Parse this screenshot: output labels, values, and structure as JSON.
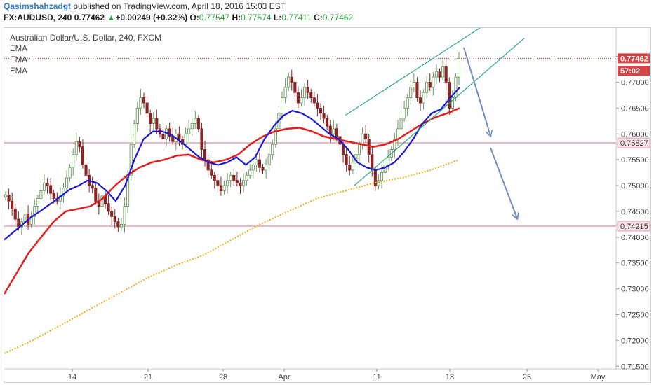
{
  "header": {
    "author": "Qasimshahzadgt",
    "published_text": "published on TradingView.com, April 18, 2016 15:03 EST",
    "symbol": "FX:AUDUSD, 240",
    "last": "0.77462",
    "change_arrow": "▲",
    "change": "+0.00249 (+0.32%)",
    "o_label": "O:",
    "o_value": "0.77547",
    "h_label": "H:",
    "h_value": "0.77574",
    "l_label": "L:",
    "l_value": "0.77411",
    "c_label": "C:",
    "c_value": "0.77462"
  },
  "legend": {
    "title": "Australian Dollar/U.S. Dollar, 240, FXCM",
    "indicators": [
      "EMA",
      "EMA",
      "EMA"
    ]
  },
  "colors": {
    "bull": "#6a9a5e",
    "bear": "#8a2525",
    "ema_fast": "#1b1bd6",
    "ema_mid": "#e02020",
    "ema_slow": "#f0b020",
    "channel": "#2aaa84",
    "arrow": "#6f8fc6",
    "level": "#e4a0b0",
    "price_line": "#c0392b",
    "label_bg": "#d64545"
  },
  "chart_data": {
    "type": "candlestick",
    "title": "Australian Dollar/U.S. Dollar, 240, FXCM",
    "ylim": [
      0.7145,
      0.7805
    ],
    "y_ticks": [
      "0.77500",
      "0.77000",
      "0.76500",
      "0.76000",
      "0.75500",
      "0.75000",
      "0.74500",
      "0.74000",
      "0.73500",
      "0.73000",
      "0.72500",
      "0.72000",
      "0.71500"
    ],
    "x_ticks": [
      "14",
      "21",
      "28",
      "Apr",
      "11",
      "18",
      "25",
      "May"
    ],
    "price_labels": [
      {
        "text": "0.77462",
        "value": 0.77462
      },
      {
        "text": "57:02",
        "value": 0.7722
      },
      {
        "text": "0.75827",
        "value": 0.75827
      },
      {
        "text": "0.74215",
        "value": 0.74215
      }
    ],
    "horizontal_levels": [
      0.75827,
      0.74215
    ],
    "candles_close": [
      0.7482,
      0.747,
      0.7455,
      0.7435,
      0.742,
      0.743,
      0.7445,
      0.7425,
      0.744,
      0.746,
      0.7475,
      0.749,
      0.7505,
      0.75,
      0.7485,
      0.7475,
      0.747,
      0.748,
      0.7495,
      0.7515,
      0.7535,
      0.756,
      0.7585,
      0.7575,
      0.754,
      0.752,
      0.75,
      0.7495,
      0.747,
      0.746,
      0.748,
      0.7465,
      0.745,
      0.744,
      0.743,
      0.742,
      0.7425,
      0.746,
      0.752,
      0.758,
      0.762,
      0.765,
      0.767,
      0.766,
      0.764,
      0.762,
      0.763,
      0.761,
      0.76,
      0.759,
      0.761,
      0.7595,
      0.7585,
      0.76,
      0.759,
      0.758,
      0.76,
      0.761,
      0.762,
      0.763,
      0.761,
      0.757,
      0.755,
      0.753,
      0.752,
      0.751,
      0.75,
      0.749,
      0.75,
      0.751,
      0.752,
      0.751,
      0.7505,
      0.75,
      0.751,
      0.752,
      0.753,
      0.754,
      0.755,
      0.7535,
      0.753,
      0.754,
      0.756,
      0.758,
      0.761,
      0.764,
      0.767,
      0.769,
      0.771,
      0.77,
      0.768,
      0.766,
      0.767,
      0.769,
      0.768,
      0.767,
      0.766,
      0.765,
      0.764,
      0.763,
      0.7615,
      0.76,
      0.761,
      0.7595,
      0.758,
      0.756,
      0.754,
      0.753,
      0.7545,
      0.756,
      0.758,
      0.76,
      0.759,
      0.756,
      0.753,
      0.75,
      0.751,
      0.7525,
      0.754,
      0.7555,
      0.757,
      0.759,
      0.761,
      0.763,
      0.765,
      0.767,
      0.769,
      0.77,
      0.767,
      0.766,
      0.768,
      0.77,
      0.769,
      0.771,
      0.772,
      0.771,
      0.773,
      0.77,
      0.765,
      0.767,
      0.771,
      0.7746
    ],
    "ema_fast": [
      0.7395,
      0.741,
      0.7425,
      0.744,
      0.7452,
      0.7465,
      0.7478,
      0.7492,
      0.75,
      0.751,
      0.7505,
      0.749,
      0.747,
      0.75,
      0.755,
      0.759,
      0.7605,
      0.7605,
      0.7598,
      0.7585,
      0.757,
      0.7555,
      0.7545,
      0.754,
      0.7545,
      0.7555,
      0.754,
      0.7555,
      0.759,
      0.7615,
      0.7635,
      0.7645,
      0.764,
      0.763,
      0.7615,
      0.76,
      0.759,
      0.757,
      0.7545,
      0.7535,
      0.753,
      0.7535,
      0.7545,
      0.7565,
      0.759,
      0.762,
      0.764,
      0.7648,
      0.767,
      0.769
    ],
    "ema_mid": [
      0.729,
      0.733,
      0.737,
      0.74,
      0.743,
      0.745,
      0.7455,
      0.746,
      0.7475,
      0.75,
      0.752,
      0.7535,
      0.7545,
      0.755,
      0.7558,
      0.756,
      0.755,
      0.7545,
      0.755,
      0.756,
      0.758,
      0.7595,
      0.7605,
      0.761,
      0.7612,
      0.7605,
      0.7595,
      0.759,
      0.7585,
      0.758,
      0.7575,
      0.758,
      0.759,
      0.7605,
      0.762,
      0.7632,
      0.764,
      0.765
    ],
    "ema_slow": [
      0.7175,
      0.72,
      0.723,
      0.726,
      0.729,
      0.732,
      0.7345,
      0.7365,
      0.7395,
      0.7425,
      0.745,
      0.7475,
      0.749,
      0.7505,
      0.7515,
      0.753,
      0.755
    ],
    "channel_lines": [
      {
        "from": [
          0.7636,
          0
        ],
        "to": [
          0.7805,
          1
        ]
      },
      {
        "from": [
          0.75,
          0
        ],
        "to": [
          0.7785,
          1
        ]
      }
    ]
  }
}
